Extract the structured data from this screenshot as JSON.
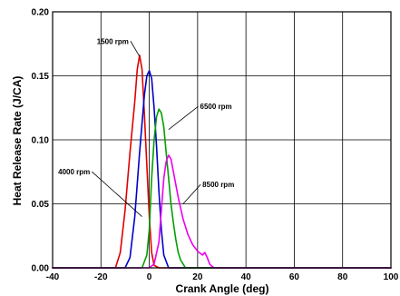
{
  "chart_data": {
    "type": "line",
    "title": "",
    "xlabel": "Crank Angle (deg)",
    "ylabel": "Heat Release Rate (J/CA)",
    "xlim": [
      -40,
      100
    ],
    "ylim": [
      0,
      0.2
    ],
    "x_ticks": [
      -40,
      -20,
      0,
      20,
      40,
      60,
      80,
      100
    ],
    "y_ticks": [
      0,
      0.05,
      0.1,
      0.15,
      0.2
    ],
    "x_tick_labels": [
      "-40",
      "-20",
      "0",
      "20",
      "40",
      "60",
      "80",
      "100"
    ],
    "y_tick_labels": [
      "0.00",
      "0.05",
      "0.10",
      "0.15",
      "0.20"
    ],
    "grid": true,
    "legend": "none (labels shown as on-chart annotations with leader lines)",
    "series": [
      {
        "name": "1500 rpm",
        "color": "#e00000",
        "x": [
          -40,
          -14,
          -12,
          -10,
          -8,
          -6,
          -5,
          -4,
          -3,
          -2,
          -1,
          0,
          1,
          2,
          4,
          100
        ],
        "y": [
          0,
          0,
          0.012,
          0.045,
          0.09,
          0.13,
          0.155,
          0.166,
          0.155,
          0.12,
          0.08,
          0.04,
          0.012,
          0.002,
          0,
          0
        ]
      },
      {
        "name": "4000 rpm",
        "color": "#0000cc",
        "x": [
          -40,
          -10,
          -8,
          -6,
          -4,
          -2,
          -1,
          0,
          1,
          2,
          3,
          4,
          5,
          6,
          8,
          100
        ],
        "y": [
          0,
          0,
          0.008,
          0.04,
          0.09,
          0.135,
          0.15,
          0.154,
          0.148,
          0.125,
          0.095,
          0.06,
          0.03,
          0.01,
          0,
          0
        ]
      },
      {
        "name": "6500 rpm",
        "color": "#00a000",
        "x": [
          -40,
          -3,
          -1,
          0,
          1,
          2,
          3,
          4,
          5,
          6,
          7,
          8,
          9,
          10,
          11,
          12,
          13,
          14,
          15,
          100
        ],
        "y": [
          0,
          0,
          0.01,
          0.03,
          0.07,
          0.1,
          0.118,
          0.124,
          0.121,
          0.11,
          0.09,
          0.07,
          0.05,
          0.035,
          0.022,
          0.012,
          0.006,
          0.003,
          0,
          0
        ]
      },
      {
        "name": "8500 rpm",
        "color": "#ee00ee",
        "x": [
          -40,
          0,
          2,
          4,
          5,
          6,
          7,
          8,
          9,
          10,
          12,
          14,
          16,
          18,
          20,
          22,
          23,
          24,
          25,
          26,
          27,
          100
        ],
        "y": [
          0,
          0,
          0.003,
          0.02,
          0.045,
          0.07,
          0.083,
          0.088,
          0.085,
          0.075,
          0.055,
          0.038,
          0.026,
          0.018,
          0.013,
          0.01,
          0.012,
          0.008,
          0.003,
          0.001,
          0,
          0
        ]
      }
    ],
    "annotations": [
      {
        "text": "1500 rpm",
        "label_at": [
          -8.5,
          0.175
        ],
        "point_to": [
          -4,
          0.165
        ],
        "anchor": "end"
      },
      {
        "text": "4000 rpm",
        "label_at": [
          -24.5,
          0.073
        ],
        "point_to": [
          -3,
          0.04
        ],
        "anchor": "end"
      },
      {
        "text": "6500 rpm",
        "label_at": [
          21,
          0.124
        ],
        "point_to": [
          8,
          0.108
        ],
        "anchor": "start"
      },
      {
        "text": "8500 rpm",
        "label_at": [
          22,
          0.063
        ],
        "point_to": [
          14,
          0.05
        ],
        "anchor": "start"
      }
    ]
  }
}
